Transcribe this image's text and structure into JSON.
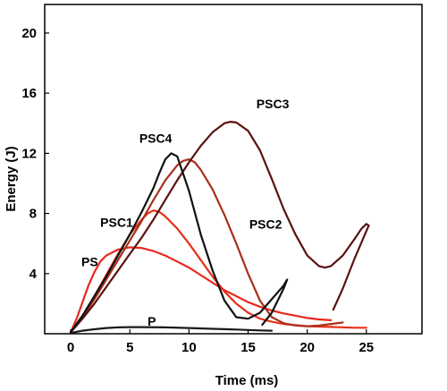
{
  "chart_data": {
    "type": "line",
    "xlabel": "Time (ms)",
    "ylabel": "Energy (J)",
    "xlim": [
      -2.2,
      29.7
    ],
    "ylim": [
      0,
      21.9
    ],
    "x_ticks": [
      0,
      5,
      10,
      15,
      20,
      25
    ],
    "y_ticks": [
      4,
      8,
      12,
      16,
      20
    ],
    "grid": false,
    "legend": "none",
    "series": [
      {
        "name": "P",
        "color": "#1a1a1a",
        "points": [
          [
            0,
            0.05
          ],
          [
            1,
            0.2
          ],
          [
            2,
            0.3
          ],
          [
            3,
            0.38
          ],
          [
            4,
            0.42
          ],
          [
            5,
            0.44
          ],
          [
            6,
            0.44
          ],
          [
            8,
            0.42
          ],
          [
            10,
            0.38
          ],
          [
            12,
            0.33
          ],
          [
            14,
            0.28
          ],
          [
            16,
            0.22
          ],
          [
            17,
            0.2
          ]
        ]
      },
      {
        "name": "PS",
        "color": "#e8281e",
        "points": [
          [
            0,
            0.1
          ],
          [
            0.5,
            1.0
          ],
          [
            1,
            2.1
          ],
          [
            1.5,
            3.2
          ],
          [
            2,
            4.1
          ],
          [
            2.5,
            4.8
          ],
          [
            3,
            5.2
          ],
          [
            4,
            5.6
          ],
          [
            5,
            5.75
          ],
          [
            6,
            5.7
          ],
          [
            7,
            5.5
          ],
          [
            8,
            5.2
          ],
          [
            9,
            4.8
          ],
          [
            10,
            4.4
          ],
          [
            11,
            3.9
          ],
          [
            12,
            3.4
          ],
          [
            13,
            2.9
          ],
          [
            14,
            2.5
          ],
          [
            15,
            2.1
          ],
          [
            16,
            1.8
          ],
          [
            17,
            1.55
          ],
          [
            18,
            1.35
          ],
          [
            19,
            1.2
          ],
          [
            20,
            1.05
          ],
          [
            21,
            0.95
          ],
          [
            22,
            0.9
          ]
        ]
      },
      {
        "name": "PSC1",
        "color": "#e83018",
        "points": [
          [
            0,
            0.1
          ],
          [
            1,
            1.2
          ],
          [
            2,
            2.5
          ],
          [
            3,
            3.9
          ],
          [
            4,
            5.3
          ],
          [
            5,
            6.6
          ],
          [
            6,
            7.6
          ],
          [
            6.5,
            8.0
          ],
          [
            7,
            8.2
          ],
          [
            7.5,
            8.1
          ],
          [
            8,
            7.8
          ],
          [
            9,
            7.0
          ],
          [
            10,
            6.0
          ],
          [
            11,
            4.9
          ],
          [
            12,
            3.8
          ],
          [
            13,
            2.8
          ],
          [
            14,
            2.0
          ],
          [
            15,
            1.4
          ],
          [
            16,
            1.0
          ],
          [
            17,
            0.8
          ],
          [
            18,
            0.65
          ],
          [
            20,
            0.5
          ],
          [
            22,
            0.45
          ],
          [
            24,
            0.4
          ],
          [
            25,
            0.4
          ]
        ]
      },
      {
        "name": "PSC2",
        "color": "#a8301c",
        "points": [
          [
            0,
            0.1
          ],
          [
            1,
            1.1
          ],
          [
            2,
            2.3
          ],
          [
            3,
            3.6
          ],
          [
            4,
            4.9
          ],
          [
            5,
            6.2
          ],
          [
            6,
            7.5
          ],
          [
            7,
            8.9
          ],
          [
            8,
            10.2
          ],
          [
            9,
            11.2
          ],
          [
            9.5,
            11.5
          ],
          [
            10,
            11.6
          ],
          [
            10.5,
            11.4
          ],
          [
            11,
            10.9
          ],
          [
            12,
            9.6
          ],
          [
            13,
            7.9
          ],
          [
            14,
            6.0
          ],
          [
            15,
            4.0
          ],
          [
            16,
            2.2
          ],
          [
            17,
            1.1
          ],
          [
            18,
            0.7
          ],
          [
            19,
            0.55
          ],
          [
            20,
            0.5
          ],
          [
            21,
            0.55
          ],
          [
            22,
            0.65
          ],
          [
            23,
            0.75
          ]
        ]
      },
      {
        "name": "PSC3",
        "color": "#5a1210",
        "points": [
          [
            0,
            0.1
          ],
          [
            1,
            1.0
          ],
          [
            2,
            2.0
          ],
          [
            3,
            3.1
          ],
          [
            4,
            4.2
          ],
          [
            5,
            5.3
          ],
          [
            6,
            6.4
          ],
          [
            7,
            7.6
          ],
          [
            8,
            8.9
          ],
          [
            9,
            10.2
          ],
          [
            10,
            11.4
          ],
          [
            11,
            12.5
          ],
          [
            12,
            13.4
          ],
          [
            13,
            14.0
          ],
          [
            13.5,
            14.1
          ],
          [
            14,
            14.05
          ],
          [
            15,
            13.5
          ],
          [
            16,
            12.2
          ],
          [
            17,
            10.3
          ],
          [
            18,
            8.3
          ],
          [
            19,
            6.6
          ],
          [
            20,
            5.2
          ],
          [
            21,
            4.5
          ],
          [
            21.5,
            4.4
          ],
          [
            22,
            4.5
          ],
          [
            23,
            5.2
          ],
          [
            24,
            6.3
          ],
          [
            24.6,
            7.0
          ],
          [
            25,
            7.3
          ],
          [
            25.2,
            7.2
          ],
          [
            24,
            5.0
          ],
          [
            23,
            3.0
          ],
          [
            22.2,
            1.6
          ]
        ]
      },
      {
        "name": "PSC4",
        "color": "#111111",
        "points": [
          [
            0,
            0.1
          ],
          [
            1,
            1.2
          ],
          [
            2,
            2.5
          ],
          [
            3,
            3.8
          ],
          [
            4,
            5.2
          ],
          [
            5,
            6.6
          ],
          [
            6,
            8.1
          ],
          [
            7,
            9.7
          ],
          [
            7.5,
            10.7
          ],
          [
            8,
            11.6
          ],
          [
            8.5,
            12.0
          ],
          [
            9,
            11.8
          ],
          [
            10,
            9.5
          ],
          [
            11,
            6.6
          ],
          [
            12,
            4.2
          ],
          [
            13,
            2.2
          ],
          [
            14,
            1.1
          ],
          [
            15,
            1.0
          ],
          [
            16,
            1.4
          ],
          [
            17,
            2.3
          ],
          [
            18,
            3.2
          ],
          [
            18.3,
            3.6
          ],
          [
            18,
            3.0
          ],
          [
            17.5,
            2.2
          ],
          [
            17,
            1.4
          ],
          [
            16.5,
            0.9
          ],
          [
            16.2,
            0.6
          ]
        ]
      }
    ],
    "annotations": [
      {
        "text": "P",
        "x": 6.5,
        "y": 0.55
      },
      {
        "text": "PS",
        "x": 0.9,
        "y": 4.5
      },
      {
        "text": "PSC1",
        "x": 2.5,
        "y": 7.1
      },
      {
        "text": "PSC2",
        "x": 15.1,
        "y": 7.0
      },
      {
        "text": "PSC3",
        "x": 15.7,
        "y": 15.0
      },
      {
        "text": "PSC4",
        "x": 5.8,
        "y": 12.7
      }
    ]
  }
}
